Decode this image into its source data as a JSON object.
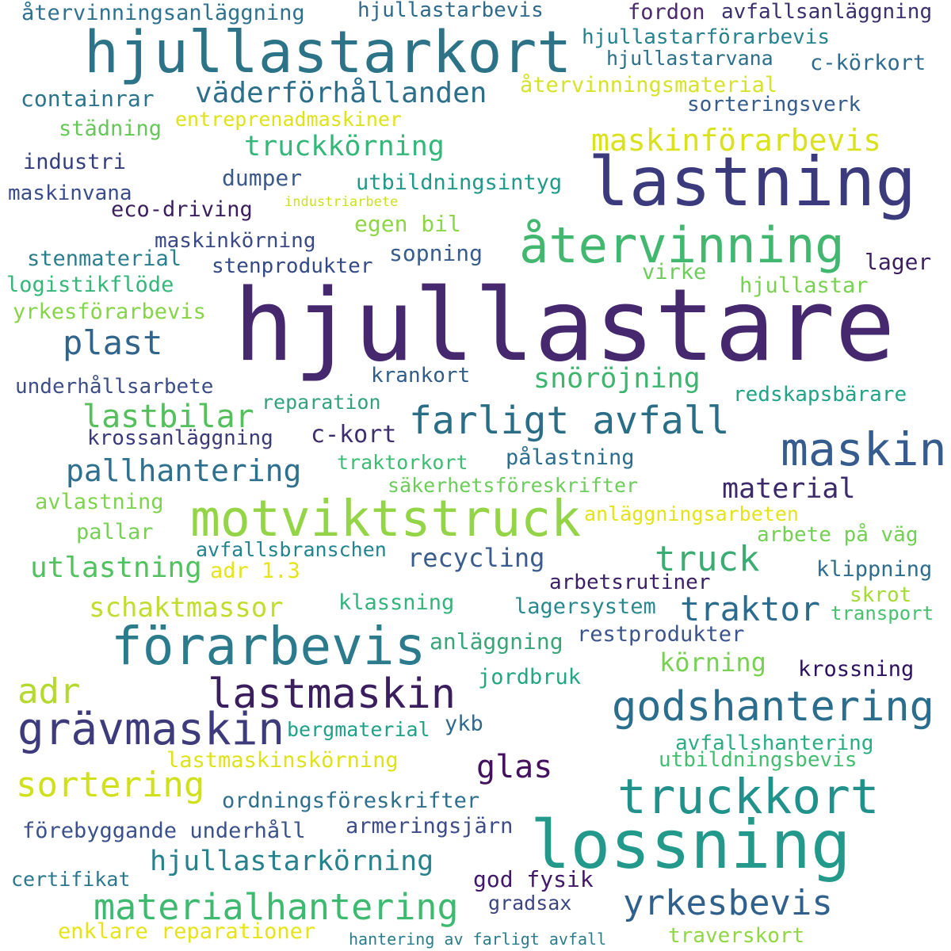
{
  "words": [
    {
      "text": "hjullastare",
      "color": "#46286f"
    },
    {
      "text": "lastning",
      "color": "#3b3a7c"
    },
    {
      "text": "hjullastarkort",
      "color": "#2d7387"
    },
    {
      "text": "lossning",
      "color": "#22998a"
    },
    {
      "text": "förarbevis",
      "color": "#2b7b8d"
    },
    {
      "text": "motviktstruck",
      "color": "#94d447"
    },
    {
      "text": "återvinning",
      "color": "#41b76f"
    },
    {
      "text": "maskin",
      "color": "#365c8d"
    },
    {
      "text": "truckkort",
      "color": "#21918c"
    },
    {
      "text": "lastmaskin",
      "color": "#3a1e5e"
    },
    {
      "text": "grävmaskin",
      "color": "#3e3b7c"
    },
    {
      "text": "godshantering",
      "color": "#2a6d8d"
    },
    {
      "text": "farligt avfall",
      "color": "#296d87"
    },
    {
      "text": "materialhantering",
      "color": "#3dba70"
    },
    {
      "text": "yrkesbevis",
      "color": "#30618c"
    },
    {
      "text": "väderförhållanden",
      "color": "#2b6f8b"
    },
    {
      "text": "maskinförarbevis",
      "color": "#d9e21b"
    },
    {
      "text": "sortering",
      "color": "#d0e11c"
    },
    {
      "text": "traktor",
      "color": "#2b6c8e"
    },
    {
      "text": "truck",
      "color": "#3bad73"
    },
    {
      "text": "adr",
      "color": "#b5da2d"
    },
    {
      "text": "plast",
      "color": "#31648b"
    },
    {
      "text": "lastbilar",
      "color": "#53c05b"
    },
    {
      "text": "pallhantering",
      "color": "#2e708e"
    },
    {
      "text": "hjullastarkörning",
      "color": "#28828d"
    },
    {
      "text": "glas",
      "color": "#43115e"
    },
    {
      "text": "truckkörning",
      "color": "#35b779"
    },
    {
      "text": "snöröjning",
      "color": "#3eb56f"
    },
    {
      "text": "material",
      "color": "#3d2a6a"
    },
    {
      "text": "utlastning",
      "color": "#51c25f"
    },
    {
      "text": "schaktmassor",
      "color": "#c1dd30"
    },
    {
      "text": "körning",
      "color": "#78d152"
    },
    {
      "text": "recycling",
      "color": "#3b5c8c"
    },
    {
      "text": "c-kort",
      "color": "#3e2e6e"
    },
    {
      "text": "dumper",
      "color": "#3b5a8a"
    },
    {
      "text": "containrar",
      "color": "#2a748e"
    },
    {
      "text": "hjullastarbevis",
      "color": "#2f6a8c"
    },
    {
      "text": "fordon",
      "color": "#4a2a6c"
    },
    {
      "text": "avfallsanläggning",
      "color": "#3a306e"
    },
    {
      "text": "återvinningsanläggning",
      "color": "#2f718e"
    },
    {
      "text": "hjullastarförarbevis",
      "color": "#26828e"
    },
    {
      "text": "hjullastarvana",
      "color": "#2b6f8b"
    },
    {
      "text": "c-körkort",
      "color": "#2e6b8e"
    },
    {
      "text": "återvinningsmaterial",
      "color": "#d6e32a"
    },
    {
      "text": "sorteringsverk",
      "color": "#365c8d"
    },
    {
      "text": "entreprenadmaskiner",
      "color": "#dde318"
    },
    {
      "text": "städning",
      "color": "#67c75a"
    },
    {
      "text": "industri",
      "color": "#343e7c"
    },
    {
      "text": "utbildningsintyg",
      "color": "#1f9a8a"
    },
    {
      "text": "maskinvana",
      "color": "#3a4c8a"
    },
    {
      "text": "eco-driving",
      "color": "#3a1e5e"
    },
    {
      "text": "industriarbete",
      "color": "#cde11c"
    },
    {
      "text": "egen bil",
      "color": "#8ed645"
    },
    {
      "text": "maskinkörning",
      "color": "#3a4a88"
    },
    {
      "text": "stenmaterial",
      "color": "#2c7e8e"
    },
    {
      "text": "stenprodukter",
      "color": "#344a86"
    },
    {
      "text": "sopning",
      "color": "#365d8d"
    },
    {
      "text": "lager",
      "color": "#3c1f60"
    },
    {
      "text": "logistikflöde",
      "color": "#35b779"
    },
    {
      "text": "virke",
      "color": "#6ccd5a"
    },
    {
      "text": "hjullastar",
      "color": "#7ad151"
    },
    {
      "text": "yrkesförarbevis",
      "color": "#86d549"
    },
    {
      "text": "krankort",
      "color": "#2f5c8a"
    },
    {
      "text": "underhållsarbete",
      "color": "#3d4e8a"
    },
    {
      "text": "reparation",
      "color": "#33a17d"
    },
    {
      "text": "redskapsbärare",
      "color": "#20a386"
    },
    {
      "text": "krossanläggning",
      "color": "#3a3a78"
    },
    {
      "text": "traktorkort",
      "color": "#3dbc74"
    },
    {
      "text": "pålastning",
      "color": "#2b6d8e"
    },
    {
      "text": "säkerhetsföreskrifter",
      "color": "#6ccd5a"
    },
    {
      "text": "avlastning",
      "color": "#7fd34e"
    },
    {
      "text": "anläggningsarbeten",
      "color": "#e2e418"
    },
    {
      "text": "pallar",
      "color": "#75d054"
    },
    {
      "text": "avfallsbranschen",
      "color": "#22848e"
    },
    {
      "text": "arbete på väg",
      "color": "#72d053"
    },
    {
      "text": "adr 1.3",
      "color": "#e6e419"
    },
    {
      "text": "klippning",
      "color": "#2e6d8e"
    },
    {
      "text": "arbetsrutiner",
      "color": "#3b2065"
    },
    {
      "text": "skrot",
      "color": "#a5db36"
    },
    {
      "text": "transport",
      "color": "#48c16e"
    },
    {
      "text": "klassning",
      "color": "#32b47c"
    },
    {
      "text": "lagersystem",
      "color": "#27898d"
    },
    {
      "text": "restprodukter",
      "color": "#3b548c"
    },
    {
      "text": "anläggning",
      "color": "#3ba57a"
    },
    {
      "text": "krossning",
      "color": "#2d1160"
    },
    {
      "text": "jordbruk",
      "color": "#23a783"
    },
    {
      "text": "bergmaterial",
      "color": "#1fa187"
    },
    {
      "text": "ykb",
      "color": "#31688e"
    },
    {
      "text": "avfallshantering",
      "color": "#28ae80"
    },
    {
      "text": "lastmaskinskörning",
      "color": "#dde318"
    },
    {
      "text": "utbildningsbevis",
      "color": "#45bd71"
    },
    {
      "text": "ordningsföreskrifter",
      "color": "#2e6f8e"
    },
    {
      "text": "förebyggande underhåll",
      "color": "#3b518b"
    },
    {
      "text": "armeringsjärn",
      "color": "#3d4c88"
    },
    {
      "text": "certifikat",
      "color": "#2c778e"
    },
    {
      "text": "god fysik",
      "color": "#41186a"
    },
    {
      "text": "gradsax",
      "color": "#3c4583"
    },
    {
      "text": "enklare reparationer",
      "color": "#e6e419"
    },
    {
      "text": "hantering av farligt avfall",
      "color": "#2a7c8d"
    },
    {
      "text": "traverskort",
      "color": "#8fd744"
    }
  ]
}
